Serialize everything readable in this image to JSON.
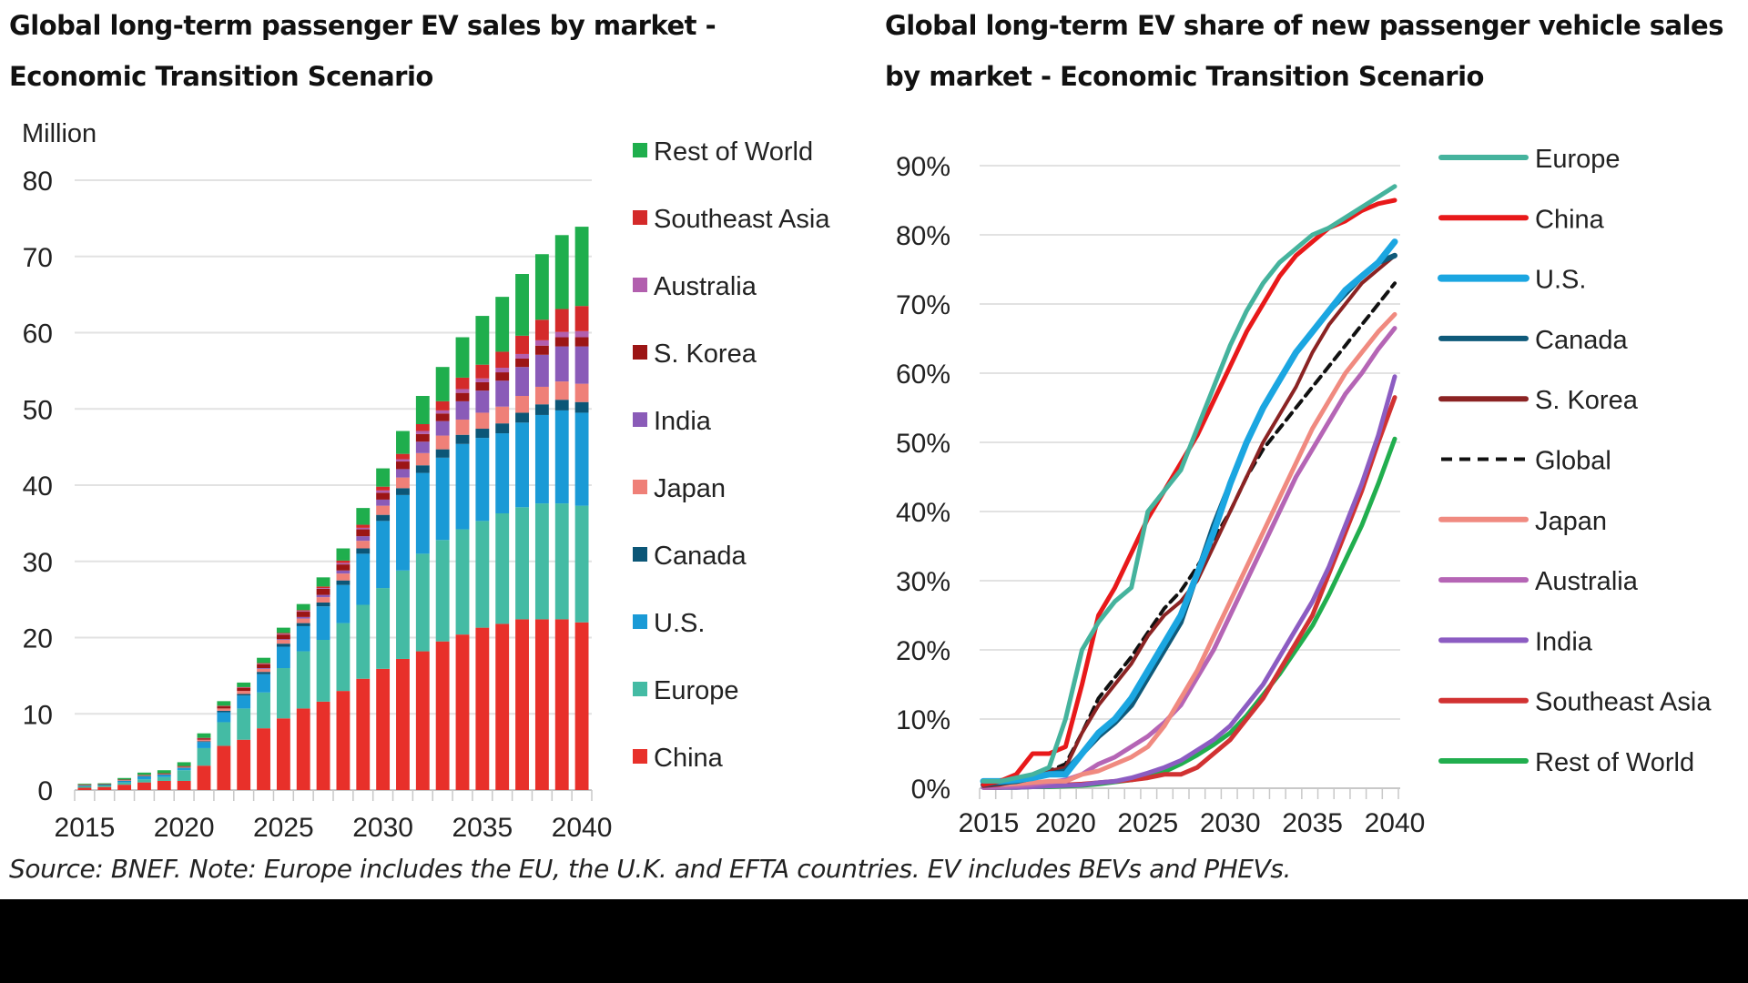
{
  "left_title": [
    "Global long-term passenger EV sales by market -",
    "Economic Transition Scenario"
  ],
  "right_title": [
    "Global long-term EV share of new passenger vehicle sales",
    "by market - Economic Transition Scenario"
  ],
  "source_note": "Source: BNEF. Note: Europe includes the EU, the U.K. and EFTA countries. EV includes BEVs and PHEVs.",
  "chart_data": [
    {
      "type": "bar",
      "stacked": true,
      "title": "Global long-term passenger EV sales by market - Economic Transition Scenario",
      "ylabel": "Million",
      "xlabel": "",
      "ylim": [
        0,
        80
      ],
      "yticks": [
        "0",
        "10",
        "20",
        "30",
        "40",
        "50",
        "60",
        "70",
        "80"
      ],
      "xticks": [
        "2015",
        "2020",
        "2025",
        "2030",
        "2035",
        "2040"
      ],
      "grid": true,
      "legend_placement": "right",
      "categories": [
        2015,
        2016,
        2017,
        2018,
        2019,
        2020,
        2021,
        2022,
        2023,
        2024,
        2025,
        2026,
        2027,
        2028,
        2029,
        2030,
        2031,
        2032,
        2033,
        2034,
        2035,
        2036,
        2037,
        2038,
        2039,
        2040
      ],
      "legend_order": [
        "Rest of World",
        "Southeast Asia",
        "Australia",
        "S. Korea",
        "India",
        "Japan",
        "Canada",
        "U.S.",
        "Europe",
        "China"
      ],
      "series": [
        {
          "name": "China",
          "color": "#e8302a",
          "values": [
            0.3,
            0.4,
            0.7,
            1.0,
            1.2,
            1.2,
            3.2,
            5.8,
            6.6,
            8.1,
            9.4,
            10.7,
            11.6,
            13.0,
            14.6,
            15.9,
            17.2,
            18.2,
            19.5,
            20.4,
            21.3,
            21.8,
            22.4,
            22.4,
            22.4,
            22.0
          ]
        },
        {
          "name": "Europe",
          "color": "#44bba4",
          "values": [
            0.2,
            0.2,
            0.3,
            0.4,
            0.5,
            1.4,
            2.3,
            3.1,
            4.1,
            4.7,
            6.6,
            7.5,
            8.1,
            8.9,
            9.7,
            10.6,
            11.6,
            12.8,
            13.3,
            13.8,
            14.0,
            14.5,
            14.7,
            15.2,
            15.2,
            15.3
          ]
        },
        {
          "name": "U.S.",
          "color": "#1a9ad6",
          "values": [
            0.1,
            0.1,
            0.2,
            0.4,
            0.3,
            0.3,
            0.8,
            1.3,
            1.7,
            2.4,
            2.8,
            3.3,
            4.4,
            5.0,
            6.7,
            8.8,
            9.9,
            10.6,
            10.8,
            11.2,
            10.9,
            10.5,
            11.1,
            11.6,
            12.2,
            12.2
          ]
        },
        {
          "name": "Canada",
          "color": "#0b5677",
          "values": [
            0.02,
            0.02,
            0.03,
            0.04,
            0.05,
            0.05,
            0.1,
            0.2,
            0.2,
            0.3,
            0.4,
            0.4,
            0.5,
            0.6,
            0.7,
            0.8,
            0.9,
            1.0,
            1.1,
            1.2,
            1.2,
            1.3,
            1.3,
            1.4,
            1.4,
            1.4
          ]
        },
        {
          "name": "Japan",
          "color": "#ef8078",
          "values": [
            0.1,
            0.05,
            0.1,
            0.1,
            0.05,
            0.1,
            0.2,
            0.3,
            0.4,
            0.4,
            0.5,
            0.6,
            0.7,
            0.9,
            1.0,
            1.2,
            1.4,
            1.6,
            1.8,
            2.0,
            2.1,
            2.2,
            2.2,
            2.3,
            2.4,
            2.4
          ]
        },
        {
          "name": "India",
          "color": "#8a5bb8",
          "values": [
            0,
            0,
            0,
            0,
            0,
            0,
            0,
            0,
            0,
            0.1,
            0.1,
            0.2,
            0.3,
            0.4,
            0.6,
            0.8,
            1.1,
            1.5,
            1.9,
            2.4,
            2.9,
            3.4,
            3.8,
            4.2,
            4.6,
            4.9
          ]
        },
        {
          "name": "S. Korea",
          "color": "#9c1515",
          "values": [
            0.02,
            0.02,
            0.05,
            0.05,
            0.1,
            0.1,
            0.2,
            0.3,
            0.4,
            0.5,
            0.6,
            0.7,
            0.8,
            0.8,
            0.9,
            0.9,
            1.0,
            1.0,
            1.0,
            1.1,
            1.1,
            1.1,
            1.1,
            1.2,
            1.2,
            1.2
          ]
        },
        {
          "name": "Australia",
          "color": "#b25fae",
          "values": [
            0,
            0,
            0,
            0,
            0,
            0,
            0.02,
            0.03,
            0.05,
            0.05,
            0.1,
            0.1,
            0.1,
            0.2,
            0.2,
            0.3,
            0.3,
            0.4,
            0.4,
            0.5,
            0.5,
            0.6,
            0.6,
            0.7,
            0.7,
            0.8
          ]
        },
        {
          "name": "Southeast Asia",
          "color": "#d42a2a",
          "values": [
            0,
            0,
            0,
            0,
            0,
            0,
            0.02,
            0.03,
            0.05,
            0.1,
            0.1,
            0.1,
            0.2,
            0.3,
            0.4,
            0.5,
            0.7,
            0.9,
            1.2,
            1.5,
            1.8,
            2.1,
            2.4,
            2.7,
            3.0,
            3.3
          ]
        },
        {
          "name": "Rest of World",
          "color": "#1fae4d",
          "values": [
            0.1,
            0.1,
            0.2,
            0.3,
            0.4,
            0.5,
            0.6,
            0.6,
            0.6,
            0.7,
            0.7,
            0.8,
            1.2,
            1.6,
            2.2,
            2.4,
            3.0,
            3.7,
            4.5,
            5.3,
            6.4,
            7.2,
            8.1,
            8.6,
            9.7,
            10.4
          ]
        }
      ]
    },
    {
      "type": "line",
      "title": "Global long-term EV share of new passenger vehicle sales by market - Economic Transition Scenario",
      "xlabel": "",
      "ylabel": "",
      "ylim": [
        0,
        90
      ],
      "yticks": [
        "0%",
        "10%",
        "20%",
        "30%",
        "40%",
        "50%",
        "60%",
        "70%",
        "80%",
        "90%"
      ],
      "xticks": [
        "2015",
        "2020",
        "2025",
        "2030",
        "2035",
        "2040"
      ],
      "grid": true,
      "legend_placement": "right",
      "x": [
        2015,
        2016,
        2017,
        2018,
        2019,
        2020,
        2021,
        2022,
        2023,
        2024,
        2025,
        2026,
        2027,
        2028,
        2029,
        2030,
        2031,
        2032,
        2033,
        2034,
        2035,
        2036,
        2037,
        2038,
        2039,
        2040
      ],
      "series": [
        {
          "name": "Europe",
          "color": "#45b39d",
          "dashed": false,
          "values": [
            1,
            1,
            1.5,
            2,
            3,
            10,
            20,
            24,
            27,
            29,
            40,
            43,
            46,
            52,
            58,
            64,
            69,
            73,
            76,
            78,
            80,
            81,
            82.5,
            84,
            85.5,
            87
          ]
        },
        {
          "name": "China",
          "color": "#e8191a",
          "dashed": false,
          "values": [
            0.5,
            1,
            2,
            5,
            5,
            6,
            15,
            25,
            29,
            34,
            39,
            43,
            47,
            51,
            56,
            61,
            66,
            70,
            74,
            77,
            79,
            81,
            82,
            83.5,
            84.5,
            85
          ]
        },
        {
          "name": "U.S.",
          "color": "#1ba6e1",
          "dashed": false,
          "values": [
            1,
            1,
            1.2,
            1.5,
            2,
            2,
            5,
            8,
            10,
            13,
            17,
            21,
            25,
            31,
            37,
            44,
            50,
            55,
            59,
            63,
            66,
            69,
            72,
            74,
            76,
            79
          ]
        },
        {
          "name": "Canada",
          "color": "#0f5a7a",
          "dashed": false,
          "values": [
            0.5,
            0.8,
            1,
            1.5,
            2,
            2.5,
            5,
            7.5,
            9.5,
            12,
            16,
            20,
            24,
            31,
            38,
            44,
            50,
            55,
            59,
            63,
            66,
            69,
            71.5,
            74,
            76,
            77
          ]
        },
        {
          "name": "S. Korea",
          "color": "#8b2323",
          "dashed": false,
          "values": [
            0.3,
            0.5,
            1,
            2,
            2.5,
            3,
            8,
            12,
            15,
            18,
            22,
            25,
            27,
            30,
            35,
            40,
            45,
            50,
            54,
            58,
            63,
            67,
            70,
            73,
            75,
            77
          ]
        },
        {
          "name": "Global",
          "color": "#111111",
          "dashed": true,
          "values": [
            0.8,
            1,
            1.5,
            2,
            2.5,
            3.5,
            8,
            13,
            16,
            19,
            22.5,
            26,
            28.5,
            32,
            36,
            40,
            45,
            49,
            52,
            55,
            58,
            61,
            64,
            67,
            70,
            73
          ]
        },
        {
          "name": "Japan",
          "color": "#f08a80",
          "dashed": false,
          "values": [
            0.5,
            0.5,
            0.6,
            0.8,
            1,
            1,
            2,
            2.5,
            3.5,
            4.5,
            6,
            9,
            13,
            17,
            22,
            27,
            32,
            37,
            42,
            47,
            52,
            56,
            60,
            63,
            66,
            68.5
          ]
        },
        {
          "name": "Australia",
          "color": "#b565b5",
          "dashed": false,
          "values": [
            0.1,
            0.2,
            0.3,
            0.5,
            0.8,
            1.2,
            2,
            3.5,
            4.5,
            6,
            7.5,
            9.5,
            12,
            16,
            20,
            25,
            30,
            35,
            40,
            45,
            49,
            53,
            57,
            60,
            63.5,
            66.5
          ]
        },
        {
          "name": "India",
          "color": "#8c5cc2",
          "dashed": false,
          "values": [
            0.1,
            0.1,
            0.1,
            0.2,
            0.3,
            0.4,
            0.5,
            0.8,
            1,
            1.5,
            2.2,
            3,
            4,
            5.5,
            7,
            9,
            12,
            15,
            19,
            23,
            27,
            32,
            38,
            44,
            51,
            59.5
          ]
        },
        {
          "name": "Southeast Asia",
          "color": "#d13232",
          "dashed": false,
          "values": [
            0.1,
            0.1,
            0.2,
            0.3,
            0.4,
            0.5,
            0.6,
            0.8,
            1,
            1.2,
            1.5,
            2,
            2,
            3,
            5,
            7,
            10,
            13,
            17,
            21,
            25,
            31,
            37,
            43,
            50,
            56.5
          ]
        },
        {
          "name": "Rest of World",
          "color": "#21ae4e",
          "dashed": false,
          "values": [
            0.1,
            0.1,
            0.1,
            0.2,
            0.2,
            0.3,
            0.4,
            0.6,
            0.9,
            1.2,
            1.6,
            2.4,
            3.5,
            4.8,
            6.3,
            8,
            10.5,
            13.5,
            16.5,
            20,
            23.5,
            28,
            33,
            38,
            44,
            50.5
          ]
        }
      ]
    }
  ]
}
